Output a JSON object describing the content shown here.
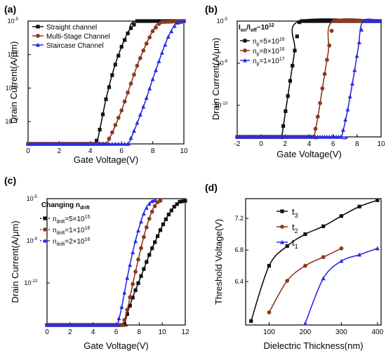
{
  "colors": {
    "black": "#111111",
    "brown": "#8b3a1e",
    "blue": "#2a2ae6",
    "red_highlight": "#e31a1c"
  },
  "chart_data": [
    {
      "panel_label": "(a)",
      "type": "line",
      "xlabel": "Gate Voltage(V)",
      "ylabel": "Drain Current(A/μm)",
      "xlim": [
        0,
        10
      ],
      "ylim_log10": [
        -16,
        -5
      ],
      "xticks": [
        "0",
        "2",
        "4",
        "6",
        "8",
        "10"
      ],
      "yticks": [
        {
          "value": -5,
          "label": "10",
          "exp": "-5"
        },
        {
          "value": -8,
          "label": "10",
          "exp": "-8"
        },
        {
          "value": -11,
          "label": "10",
          "exp": "-11"
        },
        {
          "value": -14,
          "label": "10",
          "exp": "-14"
        }
      ],
      "legend_position": "top-left",
      "series": [
        {
          "name": "Straight channel",
          "color": "#111111",
          "marker": "square",
          "x": [
            0,
            4.0,
            4.3,
            4.5,
            5.0,
            5.5,
            6.0,
            6.5,
            7.0,
            10
          ],
          "y": [
            -16,
            -16,
            -16,
            -15.4,
            -12.0,
            -9.3,
            -7.3,
            -5.8,
            -5,
            -5
          ]
        },
        {
          "name": "Multi-Stage Channel",
          "color": "#8b3a1e",
          "marker": "circle",
          "x": [
            0,
            4.8,
            5.0,
            5.3,
            6.0,
            6.5,
            7.0,
            7.5,
            8.0,
            8.5,
            10
          ],
          "y": [
            -16,
            -16,
            -16,
            -15.3,
            -13.0,
            -11.0,
            -9.0,
            -7.3,
            -5.9,
            -5.1,
            -5
          ]
        },
        {
          "name": "Staircase Channel",
          "color": "#2a2ae6",
          "marker": "triangle",
          "x": [
            0,
            6.0,
            6.4,
            6.7,
            7.5,
            8.0,
            8.5,
            9.0,
            9.5,
            10
          ],
          "y": [
            -16,
            -16,
            -16,
            -15.2,
            -12.3,
            -10.2,
            -8.2,
            -6.4,
            -5.2,
            -5
          ]
        }
      ]
    },
    {
      "panel_label": "(b)",
      "type": "line",
      "xlabel": "Gate Voltage(V)",
      "ylabel": "Drain Current(A/μm)",
      "xlim": [
        -2,
        10
      ],
      "ylim_log10": [
        -16,
        -5
      ],
      "xticks": [
        "-2",
        "0",
        "2",
        "4",
        "6",
        "8",
        "10"
      ],
      "yticks": [
        {
          "value": -5,
          "label": "10",
          "exp": "-5"
        },
        {
          "value": -9,
          "label": "10",
          "exp": "-9"
        },
        {
          "value": -13,
          "label": "10",
          "exp": "-13"
        }
      ],
      "annotation": {
        "text": "I",
        "sub1": "on",
        "mid": "/I",
        "sub2": "off",
        "tail": "~10",
        "sup": "12"
      },
      "legend_position": "top-left",
      "series": [
        {
          "name": "n_p=5×10^16",
          "base": "n",
          "sub": "p",
          "value": "=5×10",
          "exp": "16",
          "color": "#111111",
          "marker": "square",
          "x": [
            -2,
            1.5,
            1.7,
            2.0,
            2.4,
            2.8,
            3.2,
            10
          ],
          "y": [
            -16,
            -16,
            -16,
            -13.8,
            -10.8,
            -7.8,
            -5,
            -5
          ]
        },
        {
          "name": "n_p=8×10^16",
          "base": "n",
          "sub": "p",
          "value": "=8×10",
          "exp": "16",
          "color": "#8b3a1e",
          "marker": "circle",
          "x": [
            -2,
            4.2,
            4.4,
            4.8,
            5.2,
            5.6,
            6.0,
            10
          ],
          "y": [
            -16,
            -16,
            -16,
            -13.6,
            -10.7,
            -7.9,
            -5,
            -5
          ]
        },
        {
          "name": "n_p=1×10^17",
          "base": "n",
          "sub": "p",
          "value": "=1×10",
          "exp": "17",
          "color": "#2a2ae6",
          "marker": "triangle",
          "x": [
            -2,
            6.5,
            6.7,
            7.2,
            7.7,
            8.1,
            8.5,
            10
          ],
          "y": [
            -16,
            -16,
            -16,
            -13.5,
            -10.3,
            -7.5,
            -5,
            -5
          ]
        }
      ]
    },
    {
      "panel_label": "(c)",
      "type": "line",
      "xlabel": "Gate Voltage(V)",
      "ylabel": "Drain Current(A/μm)",
      "xlim": [
        0,
        12
      ],
      "ylim_log10": [
        -17,
        -5
      ],
      "xticks": [
        "0",
        "2",
        "4",
        "6",
        "8",
        "10",
        "12"
      ],
      "yticks": [
        {
          "value": -5,
          "label": "10",
          "exp": "-5"
        },
        {
          "value": -9,
          "label": "10",
          "exp": "-9"
        },
        {
          "value": -13,
          "label": "10",
          "exp": "-13"
        }
      ],
      "legend_title": {
        "text": "Changing n",
        "sub": "drift"
      },
      "legend_position": "top-left",
      "series": [
        {
          "name": "n_drift=5×10^15",
          "base": "n",
          "sub": "drift",
          "value": "=5×10",
          "exp": "15",
          "color": "#111111",
          "marker": "square",
          "x": [
            0,
            6.4,
            6.7,
            7.0,
            7.5,
            8.0,
            8.5,
            9.0,
            9.5,
            10.0,
            10.5,
            11.0,
            11.5,
            12.0
          ],
          "y": [
            -17,
            -17,
            -17,
            -15.8,
            -14.2,
            -12.8,
            -11.4,
            -10.0,
            -8.8,
            -7.6,
            -6.6,
            -5.8,
            -5.3,
            -5.2
          ]
        },
        {
          "name": "n_drift=1×10^16",
          "base": "n",
          "sub": "drift",
          "value": "=1×10",
          "exp": "16",
          "color": "#8b3a1e",
          "marker": "circle",
          "x": [
            0,
            6.3,
            6.6,
            7.0,
            7.5,
            8.0,
            8.5,
            9.0,
            9.5,
            10.0
          ],
          "y": [
            -17,
            -17,
            -17,
            -15.4,
            -12.8,
            -10.4,
            -8.2,
            -6.5,
            -5.4,
            -5.1
          ]
        },
        {
          "name": "n_drift=2×10^16",
          "base": "n",
          "sub": "drift",
          "value": "=2×10",
          "exp": "16",
          "color": "#2a2ae6",
          "marker": "triangle",
          "x": [
            0,
            5.8,
            6.1,
            6.5,
            7.0,
            7.5,
            8.0,
            8.5,
            9.0,
            9.5
          ],
          "y": [
            -17,
            -17,
            -17,
            -15.2,
            -12.3,
            -9.8,
            -7.7,
            -6.1,
            -5.3,
            -5.1
          ]
        }
      ]
    },
    {
      "panel_label": "(d)",
      "type": "line",
      "xlabel": "Dielectric Thickness(nm)",
      "ylabel": "Threshold Voltage(V)",
      "xlim": [
        35,
        410
      ],
      "ylim": [
        5.85,
        7.45
      ],
      "xticks": [
        "100",
        "200",
        "300",
        "400"
      ],
      "yticks": [
        "6.4",
        "6.8",
        "7.2"
      ],
      "legend_position": "top-left",
      "series": [
        {
          "name": "t_3",
          "base": "t",
          "sub": "3",
          "color": "#111111",
          "marker": "square",
          "x": [
            50,
            100,
            150,
            200,
            250,
            300,
            350,
            400
          ],
          "y": [
            5.9,
            6.6,
            6.85,
            7.0,
            7.1,
            7.23,
            7.35,
            7.43
          ]
        },
        {
          "name": "t_2",
          "base": "t",
          "sub": "2",
          "color": "#8b3a1e",
          "marker": "circle",
          "x": [
            100,
            150,
            200,
            250,
            300
          ],
          "y": [
            6.01,
            6.41,
            6.6,
            6.71,
            6.82
          ]
        },
        {
          "name": "t_1",
          "base": "t",
          "sub": "1",
          "color": "#2a2ae6",
          "marker": "triangle",
          "x": [
            200,
            250,
            300,
            350,
            400
          ],
          "y": [
            5.87,
            6.44,
            6.66,
            6.74,
            6.82
          ]
        }
      ]
    }
  ]
}
